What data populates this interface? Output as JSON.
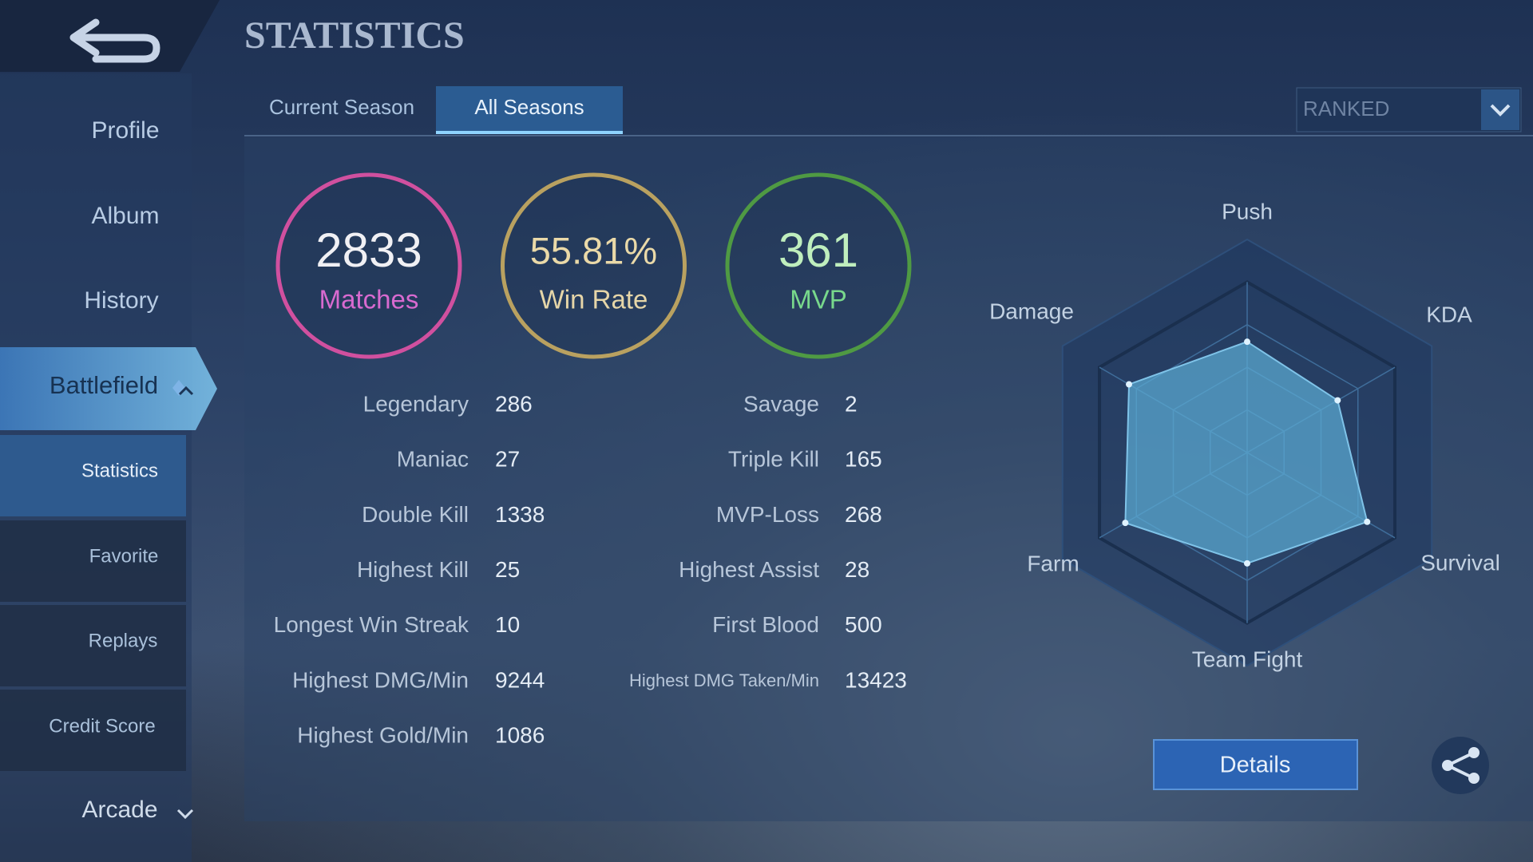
{
  "header": {
    "title": "STATISTICS"
  },
  "sidebar": {
    "items": [
      "Profile",
      "Album",
      "History",
      "Battlefield",
      "Statistics",
      "Favorite",
      "Replays",
      "Credit Score",
      "Arcade"
    ]
  },
  "tabs": [
    "Current Season",
    "All Seasons"
  ],
  "dropdown": "RANKED",
  "summary": [
    {
      "value": 2833,
      "label": "Matches"
    },
    {
      "value": "55.81%",
      "label": "Win Rate"
    },
    {
      "value": 361,
      "label": "MVP"
    }
  ],
  "stats_left": [
    [
      "Legendary",
      286
    ],
    [
      "Maniac",
      27
    ],
    [
      "Double Kill",
      1338
    ],
    [
      "Highest Kill",
      25
    ],
    [
      "Longest Win Streak",
      10
    ],
    [
      "Highest DMG/Min",
      9244
    ],
    [
      "Highest Gold/Min",
      1086
    ]
  ],
  "stats_right": [
    [
      "Savage",
      2
    ],
    [
      "Triple Kill",
      165
    ],
    [
      "MVP-Loss",
      268
    ],
    [
      "Highest Assist",
      28
    ],
    [
      "First Blood",
      500
    ],
    [
      "Highest DMG Taken/Min",
      13423
    ]
  ],
  "radar": {
    "axes": [
      "Push",
      "KDA",
      "Survival",
      "Team Fight",
      "Farm",
      "Damage"
    ],
    "values": [
      52,
      49,
      65,
      52,
      66,
      64
    ],
    "rlim": [
      0,
      100
    ]
  },
  "button": "Details"
}
